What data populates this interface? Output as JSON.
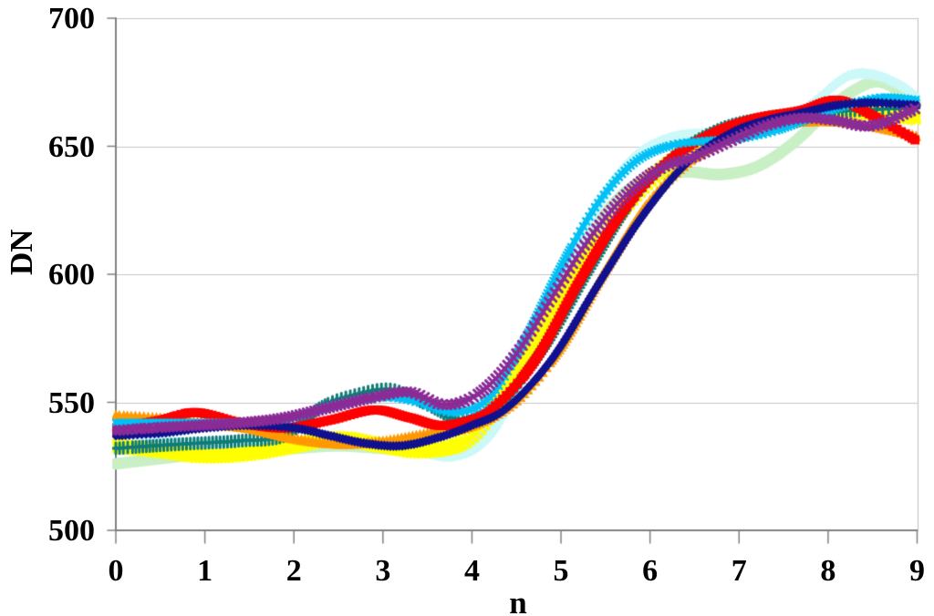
{
  "chart_data": {
    "type": "line",
    "title": "",
    "xlabel": "n",
    "ylabel": "DN",
    "x_range": [
      0,
      9
    ],
    "y_range": [
      500,
      700
    ],
    "x_tick_labels": [
      "0",
      "1",
      "2",
      "3",
      "4",
      "5",
      "6",
      "7",
      "8",
      "9"
    ],
    "y_tick_labels": [
      "700",
      "650",
      "600",
      "550",
      "500"
    ],
    "y_tick_values": [
      700,
      650,
      600,
      550,
      500
    ],
    "x_tick_values": [
      0,
      1,
      2,
      3,
      4,
      5,
      6,
      7,
      8,
      9
    ],
    "gridline_values": [
      550,
      600,
      650,
      700
    ],
    "grid_on": true,
    "legend": "none",
    "background_color": "#FFFFFF",
    "grid_color": "#C6C6C6",
    "axis_color": "#808080",
    "series": [
      {
        "name": "pale-green",
        "color": "#C9F0C5",
        "marker": "circle",
        "marker_size": 13,
        "line_width": 9,
        "marker_step": 3,
        "points": [
          [
            0,
            526
          ],
          [
            0.5,
            528
          ],
          [
            1,
            530
          ],
          [
            1.5,
            531
          ],
          [
            2,
            532
          ],
          [
            2.5,
            533
          ],
          [
            3,
            532
          ],
          [
            3.5,
            531
          ],
          [
            4,
            535
          ],
          [
            4.4,
            553
          ],
          [
            4.8,
            580
          ],
          [
            5.2,
            608
          ],
          [
            5.6,
            628
          ],
          [
            6,
            638
          ],
          [
            6.4,
            640
          ],
          [
            6.8,
            639
          ],
          [
            7.2,
            642
          ],
          [
            7.6,
            651
          ],
          [
            8,
            664
          ],
          [
            8.3,
            672
          ],
          [
            8.6,
            675
          ],
          [
            9,
            667
          ]
        ]
      },
      {
        "name": "pale-cyan",
        "color": "#CCF8F8",
        "marker": "diamond",
        "marker_size": 13,
        "line_width": 3,
        "marker_step": 3.2,
        "points": [
          [
            0,
            536
          ],
          [
            0.5,
            535
          ],
          [
            1,
            534
          ],
          [
            1.5,
            534
          ],
          [
            2,
            534
          ],
          [
            2.5,
            535
          ],
          [
            3,
            533
          ],
          [
            3.4,
            531
          ],
          [
            3.8,
            529
          ],
          [
            4.2,
            537
          ],
          [
            4.6,
            563
          ],
          [
            5,
            597
          ],
          [
            5.4,
            626
          ],
          [
            5.8,
            645
          ],
          [
            6.2,
            653
          ],
          [
            6.6,
            655
          ],
          [
            7,
            654
          ],
          [
            7.4,
            657
          ],
          [
            7.8,
            666
          ],
          [
            8.2,
            677
          ],
          [
            8.5,
            678
          ],
          [
            8.8,
            674
          ],
          [
            9,
            669
          ]
        ]
      },
      {
        "name": "yellow",
        "color": "#FFFF00",
        "marker": "x",
        "marker_size": 12,
        "stroke_width": 4,
        "line_width": 3,
        "marker_step": 3.6,
        "points": [
          [
            0,
            533
          ],
          [
            0.5,
            531
          ],
          [
            1,
            529
          ],
          [
            1.5,
            530
          ],
          [
            2,
            533
          ],
          [
            2.5,
            536
          ],
          [
            3,
            533
          ],
          [
            3.5,
            531
          ],
          [
            4,
            537
          ],
          [
            4.5,
            562
          ],
          [
            5,
            590
          ],
          [
            5.5,
            617
          ],
          [
            6,
            637
          ],
          [
            6.5,
            649
          ],
          [
            7,
            656
          ],
          [
            7.5,
            661
          ],
          [
            8,
            664
          ],
          [
            8.5,
            663
          ],
          [
            9,
            661
          ]
        ]
      },
      {
        "name": "teal",
        "color": "#117C77",
        "marker": "plus",
        "marker_size": 12,
        "stroke_width": 3,
        "line_width": 3,
        "marker_step": 3.6,
        "points": [
          [
            0,
            532
          ],
          [
            0.4,
            533
          ],
          [
            0.9,
            534
          ],
          [
            1.4,
            535
          ],
          [
            1.9,
            537
          ],
          [
            2.3,
            548
          ],
          [
            2.7,
            553
          ],
          [
            3.1,
            555
          ],
          [
            3.5,
            549
          ],
          [
            3.9,
            543
          ],
          [
            4.3,
            549
          ],
          [
            4.8,
            571
          ],
          [
            5.3,
            601
          ],
          [
            5.8,
            629
          ],
          [
            6.3,
            647
          ],
          [
            6.8,
            657
          ],
          [
            7.3,
            661
          ],
          [
            7.8,
            663
          ],
          [
            8.3,
            664
          ],
          [
            9,
            665
          ]
        ]
      },
      {
        "name": "orange",
        "color": "#FF9900",
        "marker": "triangle",
        "marker_size": 12,
        "line_width": 3,
        "marker_step": 3.4,
        "points": [
          [
            0,
            545
          ],
          [
            0.5,
            544
          ],
          [
            1,
            542
          ],
          [
            1.5,
            540
          ],
          [
            2,
            536
          ],
          [
            2.5,
            534
          ],
          [
            3,
            535
          ],
          [
            3.5,
            538
          ],
          [
            4,
            541
          ],
          [
            4.5,
            551
          ],
          [
            5,
            572
          ],
          [
            5.5,
            602
          ],
          [
            6,
            629
          ],
          [
            6.5,
            646
          ],
          [
            7,
            655
          ],
          [
            7.5,
            659
          ],
          [
            8,
            660
          ],
          [
            8.5,
            658
          ],
          [
            9,
            654
          ]
        ]
      },
      {
        "name": "red",
        "color": "#FE0000",
        "marker": "square",
        "marker_size": 10,
        "line_width": 3,
        "marker_step": 3.2,
        "points": [
          [
            0,
            540
          ],
          [
            0.5,
            543
          ],
          [
            0.9,
            546
          ],
          [
            1.4,
            542
          ],
          [
            1.9,
            540
          ],
          [
            2.4,
            543
          ],
          [
            2.9,
            547
          ],
          [
            3.3,
            544
          ],
          [
            3.7,
            541
          ],
          [
            4.2,
            547
          ],
          [
            4.7,
            566
          ],
          [
            5.2,
            597
          ],
          [
            5.7,
            625
          ],
          [
            6.2,
            644
          ],
          [
            6.7,
            655
          ],
          [
            7.2,
            661
          ],
          [
            7.7,
            664
          ],
          [
            8.1,
            668
          ],
          [
            8.5,
            662
          ],
          [
            9,
            652
          ]
        ]
      },
      {
        "name": "sky-blue",
        "color": "#00C0F5",
        "marker": "x",
        "marker_size": 7,
        "stroke_width": 2.5,
        "line_width": 6,
        "marker_step": 3.4,
        "points": [
          [
            0,
            542
          ],
          [
            0.5,
            542
          ],
          [
            1,
            542
          ],
          [
            1.5,
            542
          ],
          [
            2,
            544
          ],
          [
            2.5,
            549
          ],
          [
            3,
            552
          ],
          [
            3.4,
            550
          ],
          [
            3.8,
            546
          ],
          [
            4.2,
            552
          ],
          [
            4.6,
            575
          ],
          [
            5,
            603
          ],
          [
            5.4,
            627
          ],
          [
            5.8,
            643
          ],
          [
            6.2,
            650
          ],
          [
            6.6,
            652
          ],
          [
            7,
            653
          ],
          [
            7.4,
            656
          ],
          [
            7.8,
            661
          ],
          [
            8.2,
            666
          ],
          [
            8.6,
            669
          ],
          [
            9,
            668
          ]
        ]
      },
      {
        "name": "navy",
        "color": "#12128F",
        "marker": "diamond",
        "marker_size": 11,
        "line_width": 4,
        "marker_step": 3.2,
        "points": [
          [
            0,
            537
          ],
          [
            0.5,
            538
          ],
          [
            1,
            540
          ],
          [
            1.5,
            541
          ],
          [
            2,
            540
          ],
          [
            2.4,
            537
          ],
          [
            2.8,
            534
          ],
          [
            3.2,
            533
          ],
          [
            3.6,
            536
          ],
          [
            4,
            541
          ],
          [
            4.4,
            548
          ],
          [
            4.9,
            567
          ],
          [
            5.4,
            595
          ],
          [
            5.9,
            622
          ],
          [
            6.4,
            643
          ],
          [
            6.9,
            655
          ],
          [
            7.3,
            660
          ],
          [
            7.7,
            663
          ],
          [
            8.1,
            666
          ],
          [
            8.5,
            667
          ],
          [
            9,
            666
          ]
        ]
      },
      {
        "name": "purple",
        "color": "#8B2C96",
        "marker": "x",
        "marker_size": 9,
        "stroke_width": 3,
        "line_width": 2.5,
        "marker_step": 3.8,
        "points": [
          [
            0,
            539
          ],
          [
            0.4,
            540
          ],
          [
            0.9,
            541
          ],
          [
            1.4,
            542
          ],
          [
            1.9,
            544
          ],
          [
            2.4,
            548
          ],
          [
            2.9,
            552
          ],
          [
            3.3,
            554
          ],
          [
            3.7,
            549
          ],
          [
            4.1,
            554
          ],
          [
            4.5,
            569
          ],
          [
            4.9,
            591
          ],
          [
            5.3,
            613
          ],
          [
            5.7,
            630
          ],
          [
            6.1,
            641
          ],
          [
            6.5,
            646
          ],
          [
            6.9,
            652
          ],
          [
            7.3,
            658
          ],
          [
            7.7,
            661
          ],
          [
            8.1,
            660
          ],
          [
            8.5,
            658
          ],
          [
            9,
            665
          ]
        ]
      }
    ]
  }
}
